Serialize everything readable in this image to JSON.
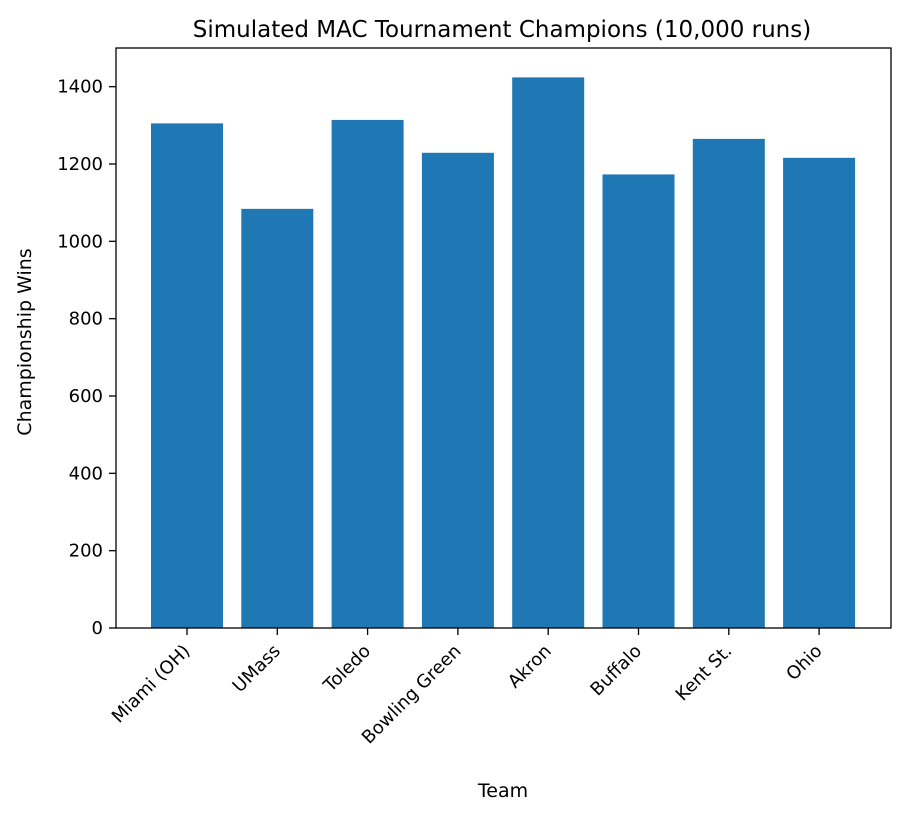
{
  "chart_data": {
    "type": "bar",
    "title": "Simulated MAC Tournament Champions (10,000 runs)",
    "xlabel": "Team",
    "ylabel": "Championship Wins",
    "categories": [
      "Miami (OH)",
      "UMass",
      "Toledo",
      "Bowling Green",
      "Akron",
      "Buffalo",
      "Kent St.",
      "Ohio"
    ],
    "values": [
      1305,
      1084,
      1314,
      1229,
      1424,
      1173,
      1265,
      1216
    ],
    "yticks": [
      0,
      200,
      400,
      600,
      800,
      1000,
      1200,
      1400
    ],
    "ylim": [
      0,
      1500
    ],
    "bar_color": "#1f77b4",
    "grid": false,
    "legend": "none"
  }
}
